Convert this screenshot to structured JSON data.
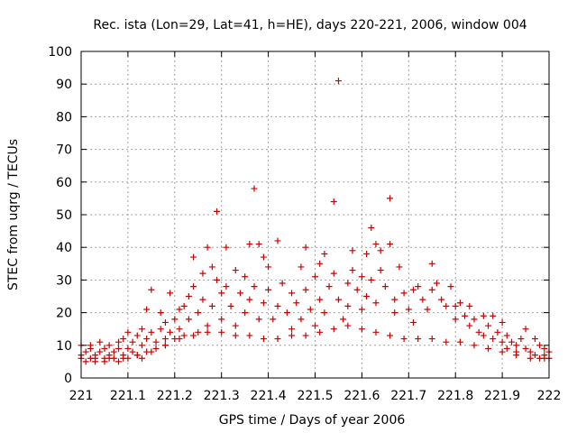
{
  "chart_data": {
    "type": "scatter",
    "title": "Rec. ista (Lon=29, Lat=41, h=HE), days 220-221, 2006, window 004",
    "xlabel": "GPS time / Days of year 2006",
    "ylabel": "STEC from uqrg / TECUs",
    "xlim": [
      221,
      222
    ],
    "ylim": [
      0,
      100
    ],
    "x_ticks": [
      "221",
      "221.1",
      "221.2",
      "221.3",
      "221.4",
      "221.5",
      "221.6",
      "221.7",
      "221.8",
      "221.9",
      "222"
    ],
    "y_ticks": [
      "0",
      "10",
      "20",
      "30",
      "40",
      "50",
      "60",
      "70",
      "80",
      "90",
      "100"
    ],
    "grid": true,
    "marker": "plus",
    "color": "#cc0000",
    "series": [
      {
        "points": [
          [
            221.0,
            10
          ],
          [
            221.0,
            7
          ],
          [
            221.0,
            6
          ],
          [
            221.01,
            8
          ],
          [
            221.01,
            5
          ],
          [
            221.02,
            9
          ],
          [
            221.02,
            6
          ],
          [
            221.02,
            10
          ],
          [
            221.03,
            7
          ],
          [
            221.03,
            5
          ],
          [
            221.04,
            11
          ],
          [
            221.04,
            8
          ],
          [
            221.05,
            6
          ],
          [
            221.05,
            9
          ],
          [
            221.05,
            5
          ],
          [
            221.06,
            10
          ],
          [
            221.06,
            7
          ],
          [
            221.07,
            8
          ],
          [
            221.07,
            6
          ],
          [
            221.08,
            9
          ],
          [
            221.08,
            11
          ],
          [
            221.08,
            5
          ],
          [
            221.09,
            7
          ],
          [
            221.09,
            12
          ],
          [
            221.1,
            9
          ],
          [
            221.1,
            6
          ],
          [
            221.1,
            14
          ],
          [
            221.11,
            8
          ],
          [
            221.11,
            11
          ],
          [
            221.12,
            7
          ],
          [
            221.12,
            13
          ],
          [
            221.13,
            10
          ],
          [
            221.13,
            15
          ],
          [
            221.13,
            6
          ],
          [
            221.14,
            21
          ],
          [
            221.14,
            12
          ],
          [
            221.14,
            8
          ],
          [
            221.15,
            27
          ],
          [
            221.15,
            14
          ],
          [
            221.16,
            11
          ],
          [
            221.16,
            9
          ],
          [
            221.17,
            15
          ],
          [
            221.17,
            20
          ],
          [
            221.18,
            12
          ],
          [
            221.18,
            17
          ],
          [
            221.18,
            10
          ],
          [
            221.19,
            26
          ],
          [
            221.19,
            14
          ],
          [
            221.2,
            18
          ],
          [
            221.2,
            12
          ],
          [
            221.21,
            21
          ],
          [
            221.21,
            15
          ],
          [
            221.22,
            22
          ],
          [
            221.22,
            13
          ],
          [
            221.23,
            25
          ],
          [
            221.23,
            18
          ],
          [
            221.24,
            37
          ],
          [
            221.24,
            28
          ],
          [
            221.25,
            20
          ],
          [
            221.25,
            14
          ],
          [
            221.26,
            32
          ],
          [
            221.26,
            24
          ],
          [
            221.27,
            40
          ],
          [
            221.27,
            16
          ],
          [
            221.28,
            34
          ],
          [
            221.28,
            22
          ],
          [
            221.29,
            51
          ],
          [
            221.29,
            30
          ],
          [
            221.3,
            26
          ],
          [
            221.3,
            18
          ],
          [
            221.31,
            40
          ],
          [
            221.31,
            28
          ],
          [
            221.32,
            22
          ],
          [
            221.33,
            33
          ],
          [
            221.33,
            16
          ],
          [
            221.34,
            26
          ],
          [
            221.35,
            31
          ],
          [
            221.35,
            20
          ],
          [
            221.36,
            41
          ],
          [
            221.36,
            24
          ],
          [
            221.37,
            58
          ],
          [
            221.37,
            28
          ],
          [
            221.38,
            18
          ],
          [
            221.38,
            41
          ],
          [
            221.39,
            37
          ],
          [
            221.39,
            23
          ],
          [
            221.4,
            34
          ],
          [
            221.4,
            27
          ],
          [
            221.41,
            18
          ],
          [
            221.42,
            42
          ],
          [
            221.42,
            22
          ],
          [
            221.43,
            29
          ],
          [
            221.44,
            20
          ],
          [
            221.45,
            26
          ],
          [
            221.45,
            15
          ],
          [
            221.46,
            23
          ],
          [
            221.47,
            34
          ],
          [
            221.47,
            18
          ],
          [
            221.48,
            40
          ],
          [
            221.48,
            27
          ],
          [
            221.49,
            21
          ],
          [
            221.5,
            31
          ],
          [
            221.5,
            16
          ],
          [
            221.51,
            35
          ],
          [
            221.51,
            24
          ],
          [
            221.52,
            38
          ],
          [
            221.52,
            20
          ],
          [
            221.53,
            28
          ],
          [
            221.54,
            54
          ],
          [
            221.54,
            32
          ],
          [
            221.55,
            91
          ],
          [
            221.55,
            24
          ],
          [
            221.56,
            18
          ],
          [
            221.57,
            29
          ],
          [
            221.57,
            22
          ],
          [
            221.58,
            39
          ],
          [
            221.58,
            33
          ],
          [
            221.59,
            27
          ],
          [
            221.6,
            31
          ],
          [
            221.6,
            21
          ],
          [
            221.61,
            38
          ],
          [
            221.61,
            25
          ],
          [
            221.62,
            46
          ],
          [
            221.62,
            30
          ],
          [
            221.63,
            41
          ],
          [
            221.63,
            23
          ],
          [
            221.64,
            39
          ],
          [
            221.64,
            33
          ],
          [
            221.65,
            28
          ],
          [
            221.66,
            55
          ],
          [
            221.66,
            41
          ],
          [
            221.67,
            24
          ],
          [
            221.67,
            20
          ],
          [
            221.68,
            34
          ],
          [
            221.69,
            26
          ],
          [
            221.7,
            21
          ],
          [
            221.71,
            27
          ],
          [
            221.71,
            17
          ],
          [
            221.72,
            28
          ],
          [
            221.73,
            24
          ],
          [
            221.74,
            21
          ],
          [
            221.75,
            35
          ],
          [
            221.75,
            27
          ],
          [
            221.76,
            29
          ],
          [
            221.77,
            24
          ],
          [
            221.78,
            22
          ],
          [
            221.79,
            28
          ],
          [
            221.8,
            22
          ],
          [
            221.8,
            18
          ],
          [
            221.81,
            23
          ],
          [
            221.82,
            19
          ],
          [
            221.83,
            22
          ],
          [
            221.83,
            16
          ],
          [
            221.84,
            18
          ],
          [
            221.85,
            14
          ],
          [
            221.86,
            19
          ],
          [
            221.86,
            13
          ],
          [
            221.87,
            16
          ],
          [
            221.88,
            19
          ],
          [
            221.88,
            12
          ],
          [
            221.89,
            14
          ],
          [
            221.9,
            11
          ],
          [
            221.9,
            17
          ],
          [
            221.91,
            13
          ],
          [
            221.91,
            9
          ],
          [
            221.92,
            11
          ],
          [
            221.93,
            10
          ],
          [
            221.93,
            8
          ],
          [
            221.94,
            12
          ],
          [
            221.95,
            9
          ],
          [
            221.95,
            15
          ],
          [
            221.96,
            8
          ],
          [
            221.97,
            12
          ],
          [
            221.97,
            7
          ],
          [
            221.98,
            10
          ],
          [
            221.98,
            6
          ],
          [
            221.99,
            9
          ],
          [
            221.99,
            7
          ],
          [
            222.0,
            8
          ],
          [
            222.0,
            6
          ],
          [
            221.03,
            6
          ],
          [
            221.06,
            6
          ],
          [
            221.09,
            6
          ],
          [
            221.12,
            7
          ],
          [
            221.15,
            8
          ],
          [
            221.18,
            10
          ],
          [
            221.21,
            12
          ],
          [
            221.24,
            13
          ],
          [
            221.27,
            14
          ],
          [
            221.3,
            14
          ],
          [
            221.33,
            13
          ],
          [
            221.36,
            13
          ],
          [
            221.39,
            12
          ],
          [
            221.42,
            12
          ],
          [
            221.45,
            13
          ],
          [
            221.48,
            13
          ],
          [
            221.51,
            14
          ],
          [
            221.54,
            15
          ],
          [
            221.57,
            16
          ],
          [
            221.6,
            15
          ],
          [
            221.63,
            14
          ],
          [
            221.66,
            13
          ],
          [
            221.69,
            12
          ],
          [
            221.72,
            12
          ],
          [
            221.75,
            12
          ],
          [
            221.78,
            11
          ],
          [
            221.81,
            11
          ],
          [
            221.84,
            10
          ],
          [
            221.87,
            9
          ],
          [
            221.9,
            8
          ],
          [
            221.93,
            7
          ],
          [
            221.96,
            6
          ],
          [
            221.99,
            6
          ]
        ]
      }
    ]
  }
}
